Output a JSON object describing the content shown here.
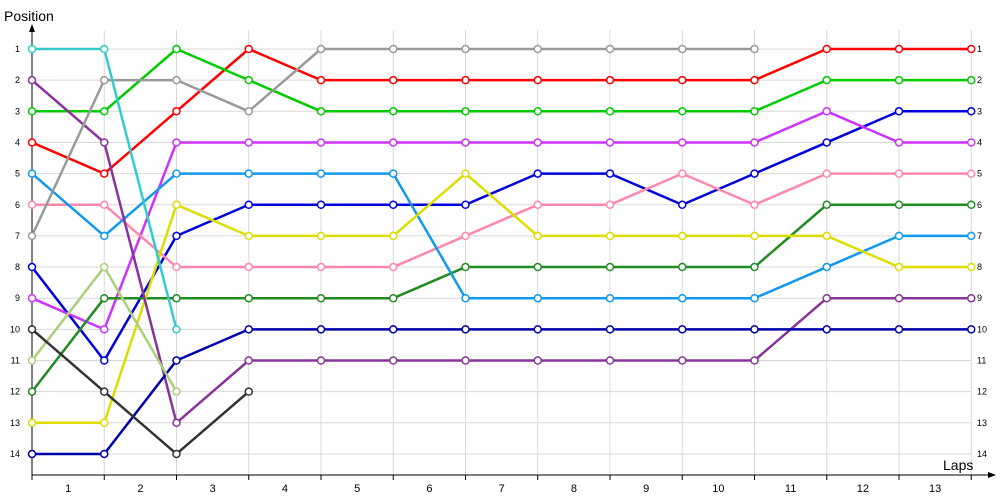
{
  "chart_data": {
    "type": "line",
    "title": "",
    "ylabel": "Position",
    "xlabel": "Laps",
    "x_ticks": [
      "1",
      "2",
      "3",
      "4",
      "5",
      "6",
      "7",
      "8",
      "9",
      "10",
      "11",
      "12",
      "13"
    ],
    "y_ticks": [
      "1",
      "2",
      "3",
      "4",
      "5",
      "6",
      "7",
      "8",
      "9",
      "10",
      "11",
      "12",
      "13",
      "14"
    ],
    "y_inverted": true,
    "grid": true,
    "series": [
      {
        "color": "#ff0000",
        "values": [
          4,
          5,
          3,
          1,
          2,
          2,
          2,
          2,
          2,
          2,
          2,
          1,
          1,
          1
        ]
      },
      {
        "color": "#00cc00",
        "values": [
          3,
          3,
          1,
          2,
          3,
          3,
          3,
          3,
          3,
          3,
          3,
          2,
          2,
          2
        ]
      },
      {
        "color": "#0000dd",
        "values": [
          8,
          11,
          7,
          6,
          6,
          6,
          6,
          5,
          5,
          6,
          5,
          4,
          3,
          3
        ]
      },
      {
        "color": "#cc33ff",
        "values": [
          9,
          10,
          4,
          4,
          4,
          4,
          4,
          4,
          4,
          4,
          4,
          3,
          4,
          4
        ]
      },
      {
        "color": "#ff88aa",
        "values": [
          6,
          6,
          8,
          8,
          8,
          8,
          7,
          6,
          6,
          5,
          6,
          5,
          5,
          5
        ]
      },
      {
        "color": "#228b22",
        "values": [
          12,
          9,
          9,
          9,
          9,
          9,
          8,
          8,
          8,
          8,
          8,
          6,
          6,
          6
        ]
      },
      {
        "color": "#1199ee",
        "values": [
          5,
          7,
          5,
          5,
          5,
          5,
          9,
          9,
          9,
          9,
          9,
          8,
          7,
          7
        ]
      },
      {
        "color": "#dddd00",
        "values": [
          13,
          13,
          6,
          7,
          7,
          7,
          5,
          7,
          7,
          7,
          7,
          7,
          8,
          8
        ]
      },
      {
        "color": "#883399",
        "values": [
          2,
          4,
          13,
          11,
          11,
          11,
          11,
          11,
          11,
          11,
          11,
          9,
          9,
          9
        ]
      },
      {
        "color": "#0000aa",
        "values": [
          14,
          14,
          11,
          10,
          10,
          10,
          10,
          10,
          10,
          10,
          10,
          10,
          10,
          10
        ]
      },
      {
        "color": "#999999",
        "values": [
          7,
          2,
          2,
          3,
          1,
          1,
          1,
          1,
          1,
          1,
          1
        ]
      },
      {
        "color": "#33cccc",
        "values": [
          1,
          1,
          10
        ]
      },
      {
        "color": "#aad07a",
        "values": [
          11,
          8,
          12
        ]
      },
      {
        "color": "#333333",
        "values": [
          10,
          12,
          14,
          12
        ]
      }
    ]
  }
}
